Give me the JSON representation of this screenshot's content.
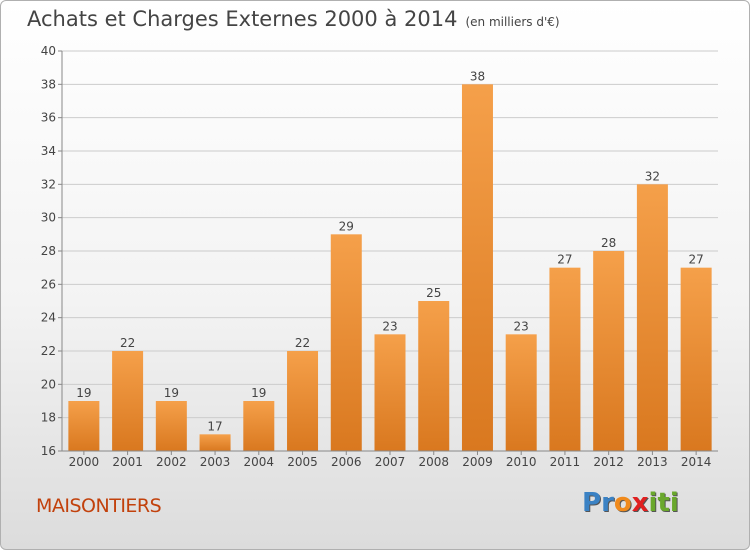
{
  "header": {
    "title": "Achats et Charges Externes 2000 à 2014",
    "subtitle": "(en milliers d'€)"
  },
  "footer": {
    "commune": "MAISONTIERS",
    "logo_letters": [
      "P",
      "r",
      "o",
      "x",
      "i",
      "t",
      "i"
    ],
    "logo_colors": [
      "#3b82c4",
      "#3b82c4",
      "#f08a1c",
      "#e02020",
      "#6aa82c",
      "#6aa82c",
      "#6aa82c"
    ]
  },
  "colors": {
    "bar_top": "#f5a04a",
    "bar_bottom": "#d9781f",
    "grid": "#cccccc",
    "axis_text": "#444444"
  },
  "chart_data": {
    "type": "bar",
    "title": "Achats et Charges Externes 2000 à 2014",
    "subtitle": "(en milliers d'€)",
    "categories": [
      "2000",
      "2001",
      "2002",
      "2003",
      "2004",
      "2005",
      "2006",
      "2007",
      "2008",
      "2009",
      "2010",
      "2011",
      "2012",
      "2013",
      "2014"
    ],
    "values": [
      19,
      22,
      19,
      17,
      19,
      22,
      29,
      23,
      25,
      38,
      23,
      27,
      28,
      32,
      27
    ],
    "ylim": [
      16,
      40
    ],
    "yticks": [
      16,
      18,
      20,
      22,
      24,
      26,
      28,
      30,
      32,
      34,
      36,
      38,
      40
    ],
    "grid": true,
    "xlabel": "",
    "ylabel": ""
  }
}
